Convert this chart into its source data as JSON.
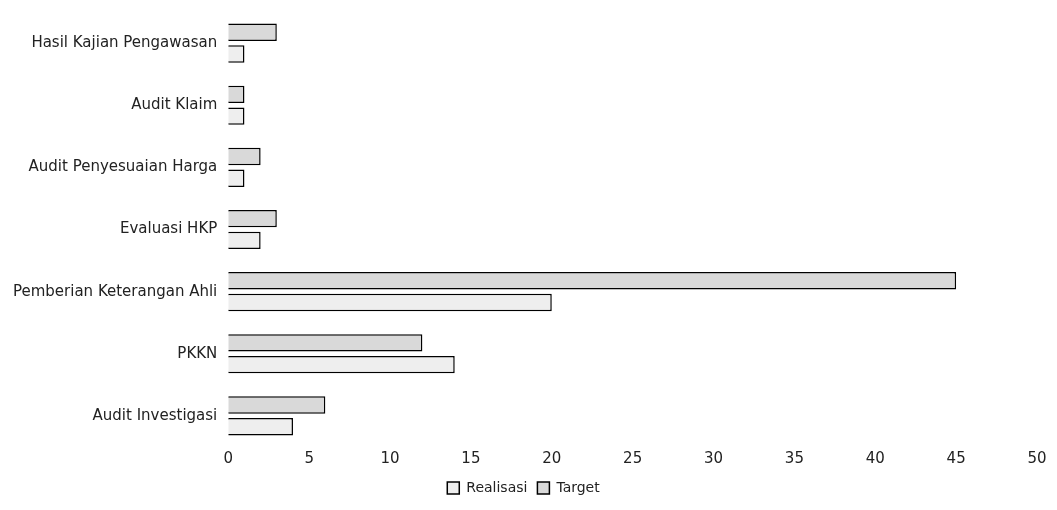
{
  "chart_data": {
    "type": "bar",
    "orientation": "horizontal",
    "categories": [
      "Hasil Kajian Pengawasan",
      "Audit Klaim",
      "Audit Penyesuaian Harga",
      "Evaluasi HKP",
      "Pemberian Keterangan Ahli",
      "PKKN",
      "Audit Investigasi"
    ],
    "series": [
      {
        "name": "Target",
        "color": "#d9d9d9",
        "values": [
          3,
          1,
          2,
          3,
          45,
          12,
          6
        ]
      },
      {
        "name": "Realisasi",
        "color": "#eeeeee",
        "values": [
          1,
          1,
          1,
          2,
          20,
          14,
          4
        ]
      }
    ],
    "xlim": [
      0,
      50
    ],
    "xticks": [
      0,
      5,
      10,
      15,
      20,
      25,
      30,
      35,
      40,
      45,
      50
    ],
    "grid": false,
    "legend": "bottom"
  }
}
